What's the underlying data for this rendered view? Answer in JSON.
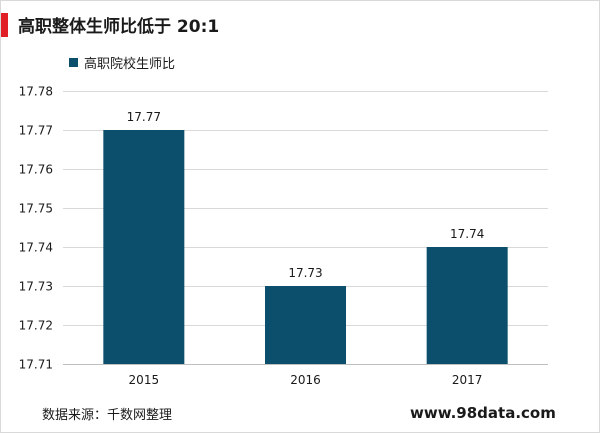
{
  "title": "高职整体生师比低于 20:1",
  "footer": {
    "source": "数据来源：千数网整理",
    "site": "www.98data.com"
  },
  "colors": {
    "accent": "#e11f26",
    "bar": "#0b4f6c",
    "grid": "#d9d9d9",
    "text": "#1a1a1a"
  },
  "chart_data": {
    "type": "bar",
    "categories": [
      "2015",
      "2016",
      "2017"
    ],
    "series": [
      {
        "name": "高职院校生师比",
        "values": [
          17.77,
          17.73,
          17.74
        ]
      }
    ],
    "data_labels": [
      "17.77",
      "17.73",
      "17.74"
    ],
    "ylim": [
      17.71,
      17.78
    ],
    "yticks": [
      17.71,
      17.72,
      17.73,
      17.74,
      17.75,
      17.76,
      17.77,
      17.78
    ],
    "ytick_labels": [
      "17.71",
      "17.72",
      "17.73",
      "17.74",
      "17.75",
      "17.76",
      "17.77",
      "17.78"
    ],
    "grid": true,
    "legend_position": "top-left"
  }
}
